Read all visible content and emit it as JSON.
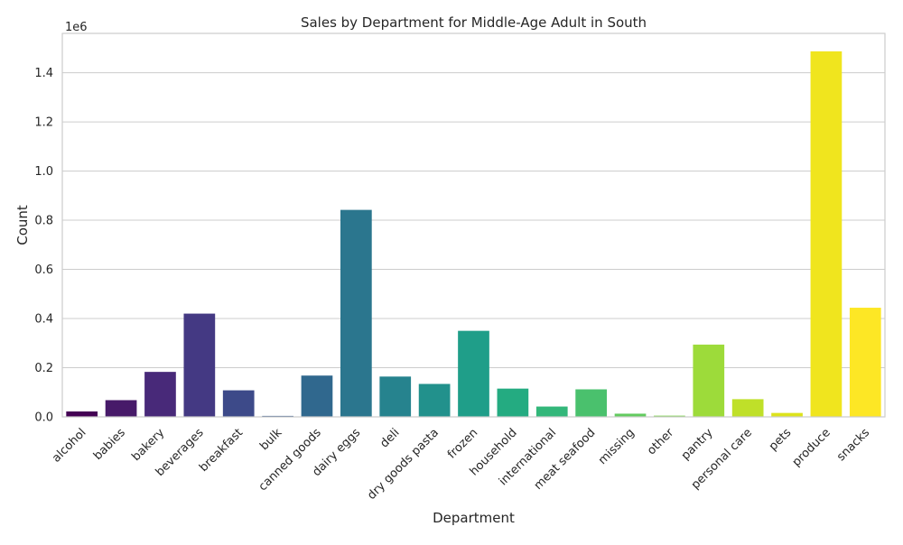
{
  "chart_data": {
    "type": "bar",
    "title": "Sales by Department for Middle-Age Adult in South",
    "xlabel": "Department",
    "ylabel": "Count",
    "y_offset_label": "1e6",
    "ylim": [
      0,
      1.56
    ],
    "y_ticks": [
      "0.0",
      "0.2",
      "0.4",
      "0.6",
      "0.8",
      "1.0",
      "1.2",
      "1.4"
    ],
    "y_tick_values": [
      0.0,
      0.2,
      0.4,
      0.6,
      0.8,
      1.0,
      1.2,
      1.4
    ],
    "grid": true,
    "categories": [
      "alcohol",
      "babies",
      "bakery",
      "beverages",
      "breakfast",
      "bulk",
      "canned goods",
      "dairy eggs",
      "deli",
      "dry goods pasta",
      "frozen",
      "household",
      "international",
      "meat seafood",
      "missing",
      "other",
      "pantry",
      "personal care",
      "pets",
      "produce",
      "snacks"
    ],
    "values": [
      0.022,
      0.068,
      0.183,
      0.42,
      0.108,
      0.004,
      0.168,
      0.842,
      0.164,
      0.134,
      0.35,
      0.115,
      0.042,
      0.112,
      0.013,
      0.005,
      0.294,
      0.072,
      0.016,
      1.487,
      0.444
    ],
    "colors": [
      "#440154",
      "#471a69",
      "#482979",
      "#443983",
      "#3d4a89",
      "#365a8c",
      "#30688e",
      "#2b768e",
      "#26838e",
      "#22918c",
      "#1f9e89",
      "#24ab81",
      "#33b77a",
      "#4ac16d",
      "#62cb5f",
      "#7fd34e",
      "#9ddb3a",
      "#bfe029",
      "#dde31c",
      "#f0e51e",
      "#fde725"
    ]
  }
}
